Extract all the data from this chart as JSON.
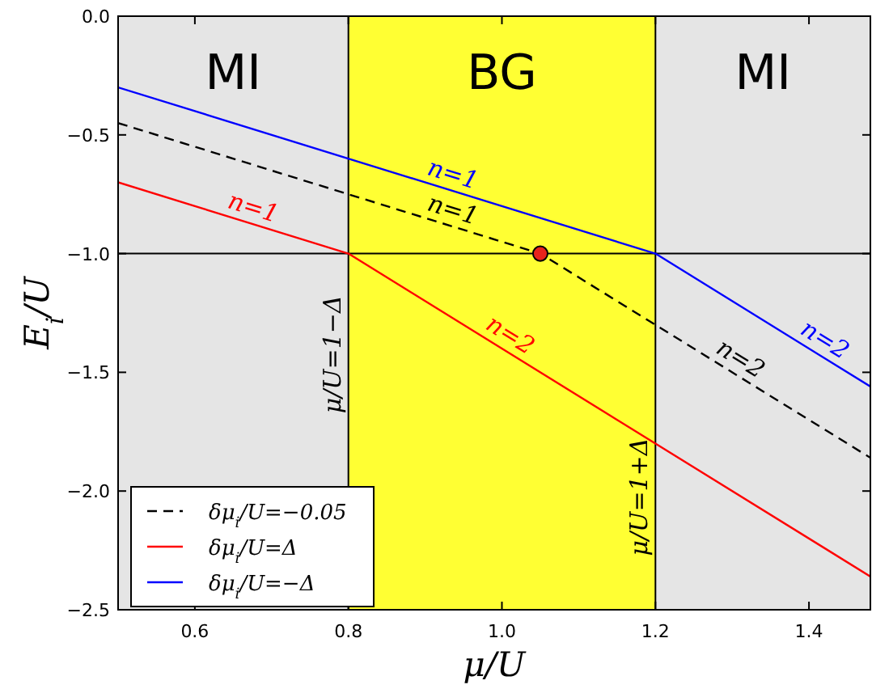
{
  "chart_data": {
    "type": "line",
    "xlabel": "μ/U",
    "ylabel": "E$_{i}$/U",
    "xlim": [
      0.5,
      1.48
    ],
    "ylim": [
      -2.5,
      0.0
    ],
    "xticks": [
      0.6,
      0.8,
      {
        "value": 1.0,
        "label": "1.0"
      },
      1.2,
      1.4
    ],
    "yticks": [
      {
        "value": -2.5,
        "label": "−2.5"
      },
      {
        "value": -2.0,
        "label": "−2.0"
      },
      {
        "value": -1.5,
        "label": "−1.5"
      },
      {
        "value": -1.0,
        "label": "−1.0"
      },
      {
        "value": -0.5,
        "label": "−0.5"
      },
      {
        "value": 0.0,
        "label": "0.0"
      }
    ],
    "grid": false,
    "legend": "bottom left",
    "marker": "none",
    "bands": [
      {
        "axis": "x",
        "from": 0.5,
        "to": 0.8,
        "label": "MI",
        "color": "#e5e5e5"
      },
      {
        "axis": "x",
        "from": 0.8,
        "to": 1.2,
        "label": "BG",
        "color": "#ffff33"
      },
      {
        "axis": "x",
        "from": 1.2,
        "to": 1.48,
        "label": "MI",
        "color": "#e5e5e5"
      }
    ],
    "ref_lines": [
      {
        "axis": "y",
        "value": -1.0,
        "label": null,
        "color": "#000000"
      },
      {
        "axis": "x",
        "value": 0.8,
        "label": "μ/U=1−Δ",
        "color": "#000000"
      },
      {
        "axis": "x",
        "value": 1.2,
        "label": "μ/U=1+Δ",
        "color": "#000000"
      }
    ],
    "series": [
      {
        "name": "δμ$_{i}$/U=−0.05",
        "color": "#000000",
        "line_style": "dashed",
        "x": [
          0.5,
          1.05,
          1.48
        ],
        "values": [
          -0.45,
          -1.0,
          -1.86
        ]
      },
      {
        "name": "δμ$_{i}$/U=Δ",
        "color": "#ff0000",
        "line_style": "solid",
        "x": [
          0.5,
          0.8,
          1.48
        ],
        "values": [
          -0.7,
          -1.0,
          -2.36
        ]
      },
      {
        "name": "δμ$_{i}$/U=−Δ",
        "color": "#0000ff",
        "line_style": "solid",
        "x": [
          0.5,
          1.2,
          1.48
        ],
        "values": [
          -0.3,
          -1.0,
          -1.56
        ]
      },
      {
        "type": "scatter",
        "marker": "circle",
        "color": "#e8231c",
        "x": [
          1.05
        ],
        "values": [
          -1.0
        ]
      }
    ],
    "annotations": [
      {
        "text": "n=1",
        "x": 0.67,
        "y": -0.87
      },
      {
        "text": "n=1",
        "x": 0.93,
        "y": -0.73
      },
      {
        "text": "n=1",
        "x": 0.93,
        "y": -0.88
      },
      {
        "text": "n=2",
        "x": 1.0,
        "y": -1.4
      },
      {
        "text": "n=2",
        "x": 1.3,
        "y": -1.5
      },
      {
        "text": "n=2",
        "x": 1.41,
        "y": -1.42
      }
    ]
  }
}
